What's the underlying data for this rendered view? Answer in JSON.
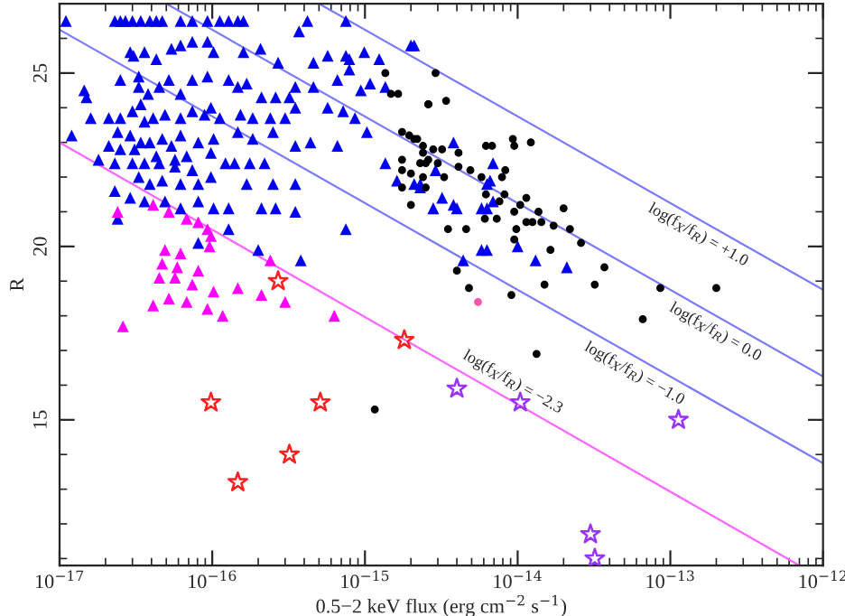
{
  "chart_data": {
    "type": "scatter",
    "xlabel": "0.5−2 keV flux (erg cm$^{−2}$ s$^{−1}$)",
    "ylabel": "R",
    "log": "x",
    "xlim": [
      1e-17,
      1e-12
    ],
    "ylim": [
      10.8,
      27
    ],
    "xticks": [
      {
        "value": 1e-17,
        "label": "10$^{−17}$"
      },
      {
        "value": 1e-16,
        "label": "10$^{−16}$"
      },
      {
        "value": 1e-15,
        "label": "10$^{−15}$"
      },
      {
        "value": 1e-14,
        "label": "10$^{−14}$"
      },
      {
        "value": 1e-13,
        "label": "10$^{−13}$"
      },
      {
        "value": 1e-12,
        "label": "10$^{−12}$"
      }
    ],
    "yticks": [
      15,
      20,
      25
    ],
    "grid": false,
    "legend": false,
    "series": [
      {
        "type": "line",
        "color": "#7a7aff",
        "marker": "none",
        "line_style": "solid",
        "x": [
          5e-16,
          1e-12
        ],
        "values": [
          27,
          18.75
        ]
      },
      {
        "type": "line",
        "color": "#7a7aff",
        "marker": "none",
        "line_style": "solid",
        "x": [
          5e-17,
          1e-12
        ],
        "values": [
          27,
          16.25
        ]
      },
      {
        "type": "line",
        "color": "#7a7aff",
        "marker": "none",
        "line_style": "solid",
        "x": [
          1e-17,
          1e-12
        ],
        "values": [
          26.25,
          13.75
        ]
      },
      {
        "type": "line",
        "color": "#ff66ff",
        "marker": "none",
        "line_style": "solid",
        "x": [
          1e-17,
          7e-13
        ],
        "values": [
          23.0,
          10.8
        ]
      },
      {
        "color": "#0000ee",
        "marker": "triangle",
        "x": [
          1.1e-17,
          2.3e-17,
          2.5e-17,
          2.7e-17,
          3e-17,
          3.4e-17,
          3.9e-17,
          4.3e-17,
          4.7e-17,
          6.2e-17,
          7.4e-17,
          9.3e-17,
          1.12e-16,
          1.28e-16,
          1.47e-16,
          1.6e-16,
          4.2e-16,
          7.5e-16,
          2.9e-17,
          3.05e-17,
          3.6e-17,
          4.3e-17,
          5.4e-17,
          6.2e-17,
          7.4e-17,
          9.3e-17,
          1.02e-16,
          1.6e-16,
          2.07e-16,
          2.7e-16,
          3.7e-16,
          4.6e-16,
          5.7e-16,
          7.5e-16,
          7.9e-16,
          9.9e-16,
          1.24e-15,
          2e-15,
          2.5e-17,
          3.3e-17,
          3.3e-17,
          3.8e-17,
          4.5e-17,
          5.2e-17,
          6.2e-17,
          7.4e-17,
          9.3e-17,
          1.28e-16,
          1.47e-16,
          1.68e-16,
          2.1e-16,
          2.6e-16,
          3.2e-16,
          3.5e-16,
          4.6e-16,
          6.6e-16,
          7.9e-16,
          9.4e-16,
          1.08e-15,
          1.36e-15,
          1.45e-17,
          1.5e-17,
          2.1e-17,
          2.5e-17,
          3e-17,
          3.4e-17,
          3.6e-17,
          4.1e-17,
          4.9e-17,
          6.2e-17,
          7.4e-17,
          8.9e-17,
          9.8e-17,
          1.12e-16,
          1.53e-16,
          1.84e-16,
          2.4e-16,
          3e-16,
          3.5e-16,
          5.7e-16,
          7.2e-16,
          8.6e-16,
          1.03e-15,
          2.4e-17,
          2.9e-17,
          3.4e-17,
          3.9e-17,
          4.7e-17,
          5.4e-17,
          6.2e-17,
          8.1e-17,
          1.02e-16,
          1.47e-16,
          1.84e-16,
          2.5e-16,
          3.5e-16,
          4.4e-16,
          6.6e-16,
          2.5e-17,
          3.1e-17,
          4.3e-17,
          5.7e-17,
          6.8e-17,
          9.8e-17,
          1.22e-16,
          1.4e-16,
          1.76e-16,
          2.2e-16,
          2.3e-17,
          3e-17,
          3.6e-17,
          4.5e-17,
          5.7e-17,
          7.4e-17,
          9.8e-17,
          1.68e-16,
          2.5e-16,
          3.5e-16,
          3.3e-17,
          3.9e-17,
          4.7e-17,
          6.2e-17,
          8.1e-17,
          2.3e-17,
          2.9e-17,
          3.6e-17,
          4.9e-17,
          6.2e-17,
          8.1e-17,
          1.02e-16,
          1.28e-16,
          2.1e-16,
          2.6e-16,
          3.5e-16,
          7.5e-16,
          2.4e-17,
          8.1e-17,
          1.28e-16,
          2e-16,
          3.8e-16,
          1.36e-15,
          1.62e-15,
          2.3e-15,
          1.2e-17,
          1.8e-17,
          1.6e-17,
          2.1e-17,
          2.1e-15,
          3.8e-15,
          2.9e-15,
          6.9e-15,
          2.1e-15,
          2.3e-15,
          3.2e-15,
          2.8e-15,
          3.8e-15,
          4e-15,
          5.8e-15,
          6.3e-15,
          6.9e-15,
          6.3e-15,
          6.6e-15,
          5.8e-15,
          6.3e-15,
          4.4e-15,
          1e-14,
          1.31e-14,
          2.1e-14
        ],
        "values": [
          26.5,
          26.5,
          26.5,
          26.5,
          26.5,
          26.5,
          26.5,
          26.5,
          26.5,
          26.5,
          26.5,
          26.5,
          26.5,
          26.5,
          26.5,
          26.5,
          26.5,
          26.5,
          25.6,
          25.5,
          25.6,
          25.4,
          25.7,
          25.8,
          25.9,
          25.9,
          25.6,
          25.6,
          25.7,
          25.3,
          26.2,
          25.3,
          25.5,
          25.5,
          25.4,
          25.6,
          25.4,
          25.8,
          24.8,
          24.9,
          24.6,
          24.4,
          24.6,
          24.8,
          24.4,
          24.8,
          24.9,
          24.8,
          24.6,
          24.7,
          24.3,
          24.3,
          24.3,
          24.6,
          24.6,
          24.8,
          25.1,
          24.5,
          24.7,
          24.6,
          24.5,
          24.3,
          23.7,
          23.7,
          23.9,
          24.1,
          23.6,
          23.7,
          23.8,
          23.7,
          23.9,
          23.8,
          24.0,
          23.7,
          23.8,
          23.7,
          23.7,
          23.7,
          24.0,
          24.0,
          23.9,
          23.7,
          23.3,
          23.3,
          23.2,
          23.0,
          23.0,
          23.1,
          22.9,
          23.2,
          23.0,
          23.1,
          23.3,
          23.1,
          23.3,
          22.9,
          23.0,
          22.9,
          22.8,
          22.8,
          22.6,
          22.5,
          22.6,
          22.7,
          22.4,
          22.4,
          22.4,
          22.4,
          22.4,
          22.4,
          22.4,
          22.4,
          22.3,
          22.2,
          22.0,
          21.8,
          21.8,
          21.8,
          22.0,
          21.8,
          21.9,
          21.8,
          21.8,
          21.6,
          21.4,
          21.3,
          21.3,
          21.1,
          21.3,
          21.1,
          21.1,
          21.1,
          21.1,
          21.0,
          20.5,
          20.8,
          20.1,
          20.5,
          19.9,
          19.6,
          22.4,
          21.9,
          21.8,
          23.2,
          22.5,
          23.7,
          22.9,
          25.8,
          23.0,
          22.2,
          22.4,
          21.8,
          21.7,
          21.4,
          21.1,
          21.2,
          21.1,
          21.1,
          21.1,
          21.3,
          21.8,
          21.9,
          19.9,
          19.9,
          19.6,
          20.0,
          19.6,
          19.4
        ]
      },
      {
        "color": "#000000",
        "marker": "circle",
        "x": [
          2.9e-15,
          3.4e-15,
          2.6e-15,
          2.1e-15,
          2.4e-15,
          2.8e-15,
          3.2e-15,
          2.3e-15,
          2.5e-15,
          3e-15,
          3.3e-15,
          4.1e-15,
          4.1e-15,
          4.9e-15,
          5.8e-15,
          6.2e-15,
          6.8e-15,
          8.3e-15,
          9.5e-15,
          9.3e-15,
          1.22e-14,
          7.9e-15,
          8.2e-15,
          6.2e-15,
          7.6e-15,
          1.04e-14,
          1.14e-14,
          1.37e-14,
          9.5e-15,
          1.14e-14,
          1.25e-14,
          1.43e-14,
          1.72e-14,
          2e-14,
          2.2e-14,
          2.6e-14,
          1.64e-14,
          9.8e-15,
          9.5e-15,
          3.7e-14,
          1.5e-14,
          3.2e-14,
          8.6e-14,
          2e-13,
          4.8e-15,
          4e-15,
          3.5e-15,
          4.6e-15,
          6.1e-15,
          7.3e-15,
          9.1e-15,
          6.6e-14,
          1.36e-15,
          1.48e-15,
          1.65e-15,
          2.6e-15,
          1.75e-15,
          1.95e-15,
          2.2e-15,
          2.4e-15,
          2.6e-15,
          1.75e-15,
          1.75e-15,
          2e-15,
          2.4e-15,
          1.75e-15,
          2e-15,
          2.5e-15,
          1.33e-14,
          1.16e-15
        ],
        "values": [
          25.0,
          24.2,
          24.1,
          23.1,
          22.9,
          22.8,
          22.8,
          22.4,
          22.4,
          22.4,
          22.0,
          22.7,
          22.3,
          22.2,
          22.0,
          22.9,
          22.9,
          22.2,
          22.9,
          23.1,
          23.0,
          22.0,
          21.5,
          21.5,
          21.3,
          21.2,
          21.4,
          21.0,
          21.0,
          20.7,
          20.7,
          20.7,
          20.6,
          21.1,
          20.5,
          20.1,
          19.9,
          20.5,
          20.2,
          19.4,
          18.9,
          18.9,
          18.8,
          18.8,
          18.8,
          19.3,
          20.5,
          20.5,
          20.8,
          20.8,
          18.6,
          17.9,
          25.0,
          24.4,
          24.4,
          24.1,
          23.3,
          23.2,
          23.1,
          22.7,
          22.5,
          22.5,
          22.2,
          22.1,
          22.0,
          21.7,
          21.2,
          21.7,
          16.9,
          15.3
        ]
      },
      {
        "color": "#ff00ff",
        "marker": "triangle",
        "x": [
          2.4e-17,
          4.1e-17,
          5.2e-17,
          6.8e-17,
          8.1e-17,
          9.3e-17,
          9.8e-17,
          9.6e-17,
          4.9e-17,
          6.2e-17,
          4.7e-17,
          5.9e-17,
          8.1e-17,
          4.5e-17,
          5.7e-17,
          7.4e-17,
          1.02e-16,
          1.47e-16,
          2.1e-16,
          3e-16,
          4.1e-17,
          5.2e-17,
          6.8e-17,
          9.3e-17,
          1.17e-16,
          6.3e-16,
          2.4e-16,
          2.6e-17
        ],
        "values": [
          21.0,
          21.2,
          21.0,
          20.8,
          20.7,
          20.5,
          20.3,
          20.0,
          19.9,
          19.8,
          19.5,
          19.4,
          19.3,
          19.1,
          19.1,
          18.9,
          18.7,
          18.8,
          18.6,
          18.4,
          18.3,
          18.5,
          18.4,
          18.2,
          18.0,
          18.0,
          19.6,
          17.7
        ]
      },
      {
        "color": "#ff2020",
        "marker": "star",
        "x": [
          2.7e-16,
          1.81e-15,
          9.8e-17,
          5.1e-16,
          3.2e-16,
          1.47e-16
        ],
        "values": [
          19.0,
          17.3,
          15.5,
          15.5,
          14.0,
          13.2
        ]
      },
      {
        "color": "#9933ff",
        "marker": "star",
        "x": [
          4e-15,
          1.04e-14,
          1.13e-13,
          3e-14,
          3.2e-14
        ],
        "values": [
          15.9,
          15.5,
          15.0,
          11.7,
          11.0
        ]
      },
      {
        "color": "#ff55aa",
        "marker": "circle",
        "x": [
          5.5e-15
        ],
        "values": [
          18.4
        ]
      }
    ],
    "annotations": [
      {
        "text": "log(f$_{X}$/f$_{R}$) = +1.0",
        "x": 1.7e-13,
        "y": 20.7
      },
      {
        "text": "log(f$_{X}$/f$_{R}$) = 0.0",
        "x": 2.2e-13,
        "y": 17.9
      },
      {
        "text": "log(f$_{X}$/f$_{R}$) = −1.0",
        "x": 6.5e-14,
        "y": 16.7
      },
      {
        "text": "log(f$_{X}$/f$_{R}$) = −2.3",
        "x": 8.3e-15,
        "y": 15.7
      }
    ]
  }
}
